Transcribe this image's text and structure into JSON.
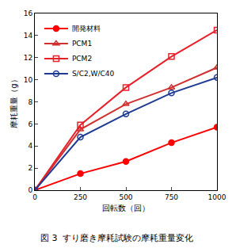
{
  "chart_data": {
    "type": "line",
    "title": "図 3  すり磨き摩耗試験の摩耗重量変化",
    "x_label": "回転数（回）",
    "y_label": "摩耗重量（g）",
    "x": [
      0,
      250,
      500,
      750,
      1000
    ],
    "series": [
      {
        "name": "開発材料",
        "color": "#ff0000",
        "marker": "circle",
        "values": [
          0,
          1.5,
          2.6,
          4.3,
          5.7
        ]
      },
      {
        "name": "PCM1",
        "color": "#d03030",
        "marker": "triangle-up-open",
        "values": [
          0,
          5.5,
          7.8,
          9.3,
          11.1
        ]
      },
      {
        "name": "PCM2",
        "color": "#e8202a",
        "marker": "square-open",
        "values": [
          0,
          5.9,
          9.3,
          12.1,
          14.5
        ]
      },
      {
        "name": "S/C2,W/C40",
        "color": "#1f3a93",
        "marker": "circle-open",
        "values": [
          0,
          4.8,
          6.9,
          8.8,
          10.2
        ]
      }
    ],
    "xlim": [
      0,
      1000
    ],
    "xticks": [
      0,
      250,
      500,
      750,
      1000
    ],
    "ylim": [
      0,
      16
    ],
    "yticks": [
      0,
      2,
      4,
      6,
      8,
      10,
      12,
      14,
      16
    ],
    "grid": false,
    "legend": "upper left"
  }
}
